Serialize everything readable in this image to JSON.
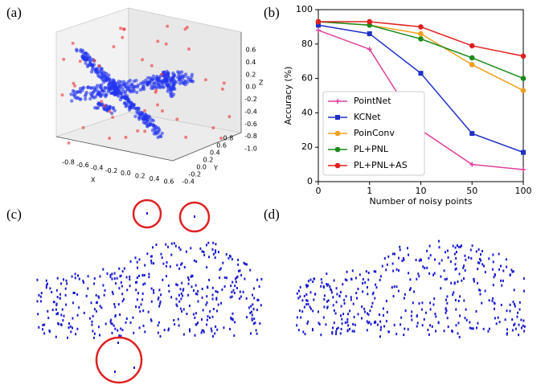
{
  "panel_labels": [
    "(a)",
    "(b)",
    "(c)",
    "(d)"
  ],
  "panel_a": {
    "x_label": "X",
    "y_label": "Y",
    "z_label": "Z",
    "xticks": [
      -0.8,
      -0.6,
      -0.4,
      -0.2,
      {
        "value": 0,
        "label": "0.0"
      },
      0.2,
      0.4,
      0.6
    ],
    "yticks": [
      -0.4,
      -0.2,
      {
        "value": 0,
        "label": "0.0"
      },
      0.2,
      0.4,
      0.6,
      0.8
    ],
    "zticks": [
      0.6,
      0.4,
      0.2,
      {
        "value": 0,
        "label": "0.0"
      },
      -0.2,
      -0.4,
      -0.6,
      -0.8,
      {
        "value": -1,
        "label": "-1.0"
      }
    ]
  },
  "chart_data": {
    "type": "line",
    "x_label": "Number of noisy points",
    "y_label": "Accuracy (%)",
    "categories": [
      "0",
      "1",
      "10",
      "50",
      "100"
    ],
    "ylim": [
      0,
      100
    ],
    "yticks": [
      0,
      20,
      40,
      60,
      80,
      100
    ],
    "legend": "lower left",
    "series": [
      {
        "name": "PointNet",
        "color": "#e0409a",
        "marker": "plus",
        "values": [
          88,
          77,
          30,
          10,
          7
        ]
      },
      {
        "name": "KCNet",
        "color": "#1f2fc8",
        "marker": "square",
        "values": [
          91,
          86,
          63,
          28,
          17
        ]
      },
      {
        "name": "PoinConv",
        "color": "#f0a020",
        "marker": "circle",
        "values": [
          93,
          91,
          86,
          68,
          53
        ]
      },
      {
        "name": "PL+PNL",
        "color": "#1a8a1a",
        "marker": "circle",
        "values": [
          93,
          91,
          83,
          72,
          60
        ]
      },
      {
        "name": "PL+PNL+AS",
        "color": "#e02020",
        "marker": "circle",
        "values": [
          93,
          93,
          90,
          79,
          73
        ]
      }
    ]
  }
}
